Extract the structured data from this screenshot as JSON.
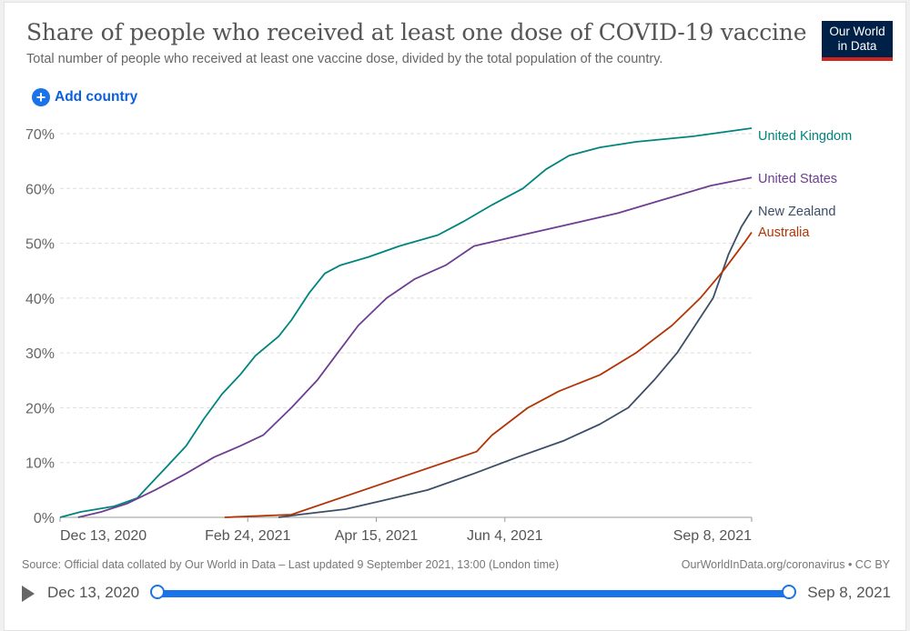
{
  "header": {
    "title": "Share of people who received at least one dose of COVID-19 vaccine",
    "subtitle": "Total number of people who received at least one vaccine dose, divided by the total population of the country.",
    "logo_line1": "Our World",
    "logo_line2": "in Data"
  },
  "controls": {
    "add_country_label": "Add country",
    "add_icon": "plus-circle-icon"
  },
  "footer": {
    "source": "Source: Official data collated by Our World in Data – Last updated 9 September 2021, 13:00 (London time)",
    "license": "OurWorldInData.org/coronavirus • CC BY"
  },
  "timeline": {
    "play_icon": "play-icon",
    "start_label": "Dec 13, 2020",
    "end_label": "Sep 8, 2021",
    "range_start_fraction": 0,
    "range_end_fraction": 1
  },
  "chart_data": {
    "type": "line",
    "title": "Share of people who received at least one dose of COVID-19 vaccine",
    "xlabel": "",
    "ylabel": "",
    "x_unit": "days since Dec 13, 2020",
    "xlim": [
      0,
      269
    ],
    "ylim": [
      0,
      70
    ],
    "grid": true,
    "legend_placement": "right (inline line-end labels)",
    "y_ticks": [
      {
        "value": 0,
        "label": "0%"
      },
      {
        "value": 10,
        "label": "10%"
      },
      {
        "value": 20,
        "label": "20%"
      },
      {
        "value": 30,
        "label": "30%"
      },
      {
        "value": 40,
        "label": "40%"
      },
      {
        "value": 50,
        "label": "50%"
      },
      {
        "value": 60,
        "label": "60%"
      },
      {
        "value": 70,
        "label": "70%"
      }
    ],
    "x_ticks": [
      {
        "value": 0,
        "label": "Dec 13, 2020"
      },
      {
        "value": 73,
        "label": "Feb 24, 2021"
      },
      {
        "value": 123,
        "label": "Apr 15, 2021"
      },
      {
        "value": 173,
        "label": "Jun 4, 2021"
      },
      {
        "value": 269,
        "label": "Sep 8, 2021"
      }
    ],
    "series": [
      {
        "name": "United Kingdom",
        "color": "#00847e",
        "points": [
          [
            0,
            0
          ],
          [
            8,
            1
          ],
          [
            21,
            2
          ],
          [
            30,
            3.5
          ],
          [
            35,
            6
          ],
          [
            42,
            9.5
          ],
          [
            49,
            13
          ],
          [
            56,
            18
          ],
          [
            63,
            22.5
          ],
          [
            70,
            26
          ],
          [
            76,
            29.5
          ],
          [
            85,
            33
          ],
          [
            90,
            36
          ],
          [
            97,
            41
          ],
          [
            103,
            44.5
          ],
          [
            109,
            46
          ],
          [
            120,
            47.5
          ],
          [
            132,
            49.5
          ],
          [
            147,
            51.5
          ],
          [
            157,
            54
          ],
          [
            168,
            57
          ],
          [
            180,
            60
          ],
          [
            189,
            63.5
          ],
          [
            198,
            66
          ],
          [
            210,
            67.5
          ],
          [
            224,
            68.5
          ],
          [
            246,
            69.5
          ],
          [
            269,
            71
          ]
        ]
      },
      {
        "name": "United States",
        "color": "#6d3e91",
        "points": [
          [
            7,
            0
          ],
          [
            16,
            1
          ],
          [
            26,
            2.5
          ],
          [
            37,
            5
          ],
          [
            49,
            8
          ],
          [
            60,
            11
          ],
          [
            70,
            13
          ],
          [
            79,
            15
          ],
          [
            90,
            20
          ],
          [
            100,
            25
          ],
          [
            108,
            30
          ],
          [
            116,
            35
          ],
          [
            127,
            40
          ],
          [
            138,
            43.5
          ],
          [
            150,
            46
          ],
          [
            161,
            49.5
          ],
          [
            175,
            51
          ],
          [
            189,
            52.5
          ],
          [
            203,
            54
          ],
          [
            217,
            55.5
          ],
          [
            235,
            58
          ],
          [
            253,
            60.5
          ],
          [
            269,
            62
          ]
        ]
      },
      {
        "name": "New Zealand",
        "color": "#3c4e66",
        "points": [
          [
            85,
            0
          ],
          [
            93,
            0.5
          ],
          [
            111,
            1.5
          ],
          [
            125,
            3
          ],
          [
            143,
            5
          ],
          [
            161,
            8
          ],
          [
            178,
            11
          ],
          [
            196,
            14
          ],
          [
            210,
            17
          ],
          [
            221,
            20
          ],
          [
            231,
            25
          ],
          [
            240,
            30
          ],
          [
            247,
            35
          ],
          [
            254,
            40
          ],
          [
            260,
            48
          ],
          [
            265,
            53
          ],
          [
            269,
            56
          ]
        ]
      },
      {
        "name": "Australia",
        "color": "#b13507",
        "points": [
          [
            64,
            0
          ],
          [
            90,
            0.5
          ],
          [
            162,
            12
          ],
          [
            168,
            15
          ],
          [
            182,
            20
          ],
          [
            194,
            23
          ],
          [
            210,
            26
          ],
          [
            224,
            30
          ],
          [
            238,
            35
          ],
          [
            249,
            40
          ],
          [
            258,
            45
          ],
          [
            266,
            50
          ],
          [
            269,
            52
          ]
        ]
      }
    ]
  }
}
